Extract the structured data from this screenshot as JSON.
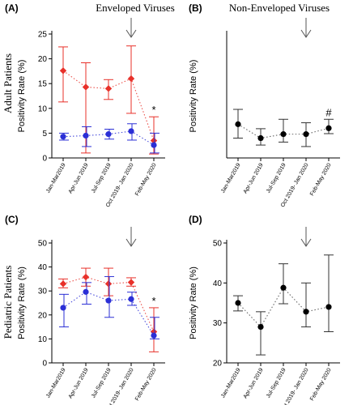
{
  "chart_data": [
    {
      "panel": "(A)",
      "type": "line",
      "title": "Enveloped Viruses",
      "row_label": "Adult Patients",
      "xlabel": "",
      "ylabel": "Positivity Rate (%)",
      "ylim": [
        0,
        25
      ],
      "yticks": [
        0,
        5,
        10,
        15,
        20,
        25
      ],
      "categories": [
        "Jan-Mar2019",
        "Apr-Jun 2019",
        "Jul-Sep 2019",
        "Oct 2019- Jan 2020",
        "Feb-May 2020"
      ],
      "series": [
        {
          "color": "#e8312a",
          "marker": "diamond",
          "values": [
            17.6,
            14.3,
            14.0,
            16.0,
            3.5
          ],
          "err_low": [
            11.3,
            1.0,
            11.8,
            9.0,
            0.8
          ],
          "err_high": [
            22.4,
            19.2,
            15.8,
            22.6,
            8.3
          ]
        },
        {
          "color": "#2b2fd6",
          "marker": "circle",
          "values": [
            4.3,
            4.5,
            4.8,
            5.4,
            2.6
          ],
          "err_low": [
            3.6,
            2.3,
            3.8,
            3.6,
            1.0
          ],
          "err_high": [
            5.0,
            6.3,
            5.8,
            6.9,
            5.0
          ]
        }
      ],
      "arrow_at": "Oct 2019- Jan 2020",
      "annotations": [
        {
          "category": "Feb-May 2020",
          "text": "*"
        }
      ]
    },
    {
      "panel": "(B)",
      "type": "line",
      "title": "Non-Enveloped Viruses",
      "xlabel": "",
      "ylabel": "Positivity Rate (%)",
      "ylim": [
        0,
        25
      ],
      "yticks": [],
      "categories": [
        "Jan-Mar2019",
        "Apr-Jun 2019",
        "Jul-Sep 2019",
        "Oct 2019- Jan 2020",
        "Feb-May 2020"
      ],
      "series": [
        {
          "color": "#000000",
          "marker": "circle",
          "values": [
            6.8,
            4.0,
            4.8,
            4.8,
            6.0
          ],
          "err_low": [
            4.0,
            2.6,
            3.2,
            2.3,
            4.9
          ],
          "err_high": [
            9.8,
            5.9,
            7.8,
            7.1,
            7.8
          ]
        }
      ],
      "arrow_at": "Oct 2019- Jan 2020",
      "annotations": [
        {
          "category": "Feb-May 2020",
          "text": "#"
        }
      ]
    },
    {
      "panel": "(C)",
      "type": "line",
      "title": "",
      "row_label": "Pediatric Patients",
      "xlabel": "",
      "ylabel": "Positivity Rate (%)",
      "ylim": [
        0,
        50
      ],
      "yticks": [
        0,
        10,
        20,
        30,
        40,
        50
      ],
      "categories": [
        "Jan-Mar2019",
        "Apr-Jun 2019",
        "Jul-Sep 2019",
        "Oct 2019- Jan 2020",
        "Feb-May 2020"
      ],
      "series": [
        {
          "color": "#e8312a",
          "marker": "diamond",
          "values": [
            33.0,
            35.8,
            33.0,
            33.6,
            13.0
          ],
          "err_low": [
            31.3,
            32.0,
            28.0,
            32.0,
            4.6
          ],
          "err_high": [
            35.0,
            39.5,
            39.5,
            35.5,
            23.0
          ]
        },
        {
          "color": "#2b2fd6",
          "marker": "circle",
          "values": [
            23.0,
            29.6,
            26.0,
            26.6,
            11.4
          ],
          "err_low": [
            15.0,
            24.5,
            19.0,
            24.0,
            10.0
          ],
          "err_high": [
            28.6,
            33.5,
            36.0,
            29.5,
            19.0
          ]
        }
      ],
      "arrow_at": "Oct 2019- Jan 2020",
      "annotations": [
        {
          "category": "Feb-May 2020",
          "text": "*"
        }
      ]
    },
    {
      "panel": "(D)",
      "type": "line",
      "title": "",
      "xlabel": "",
      "ylabel": "Positivity Rate (%)",
      "ylim": [
        20,
        50
      ],
      "yticks": [
        20,
        30,
        40,
        50
      ],
      "categories": [
        "Jan-Mar2019",
        "Apr-Jun 2019",
        "Jul-Sep 2019",
        "Oct 2019- Jan 2020",
        "Feb-May 2020"
      ],
      "series": [
        {
          "color": "#000000",
          "marker": "circle",
          "values": [
            35.0,
            29.0,
            38.8,
            32.8,
            34.0
          ],
          "err_low": [
            33.0,
            22.0,
            34.8,
            29.0,
            27.8
          ],
          "err_high": [
            36.8,
            32.8,
            44.8,
            40.0,
            47.0
          ]
        }
      ],
      "arrow_at": "Oct 2019- Jan 2020",
      "annotations": []
    }
  ]
}
